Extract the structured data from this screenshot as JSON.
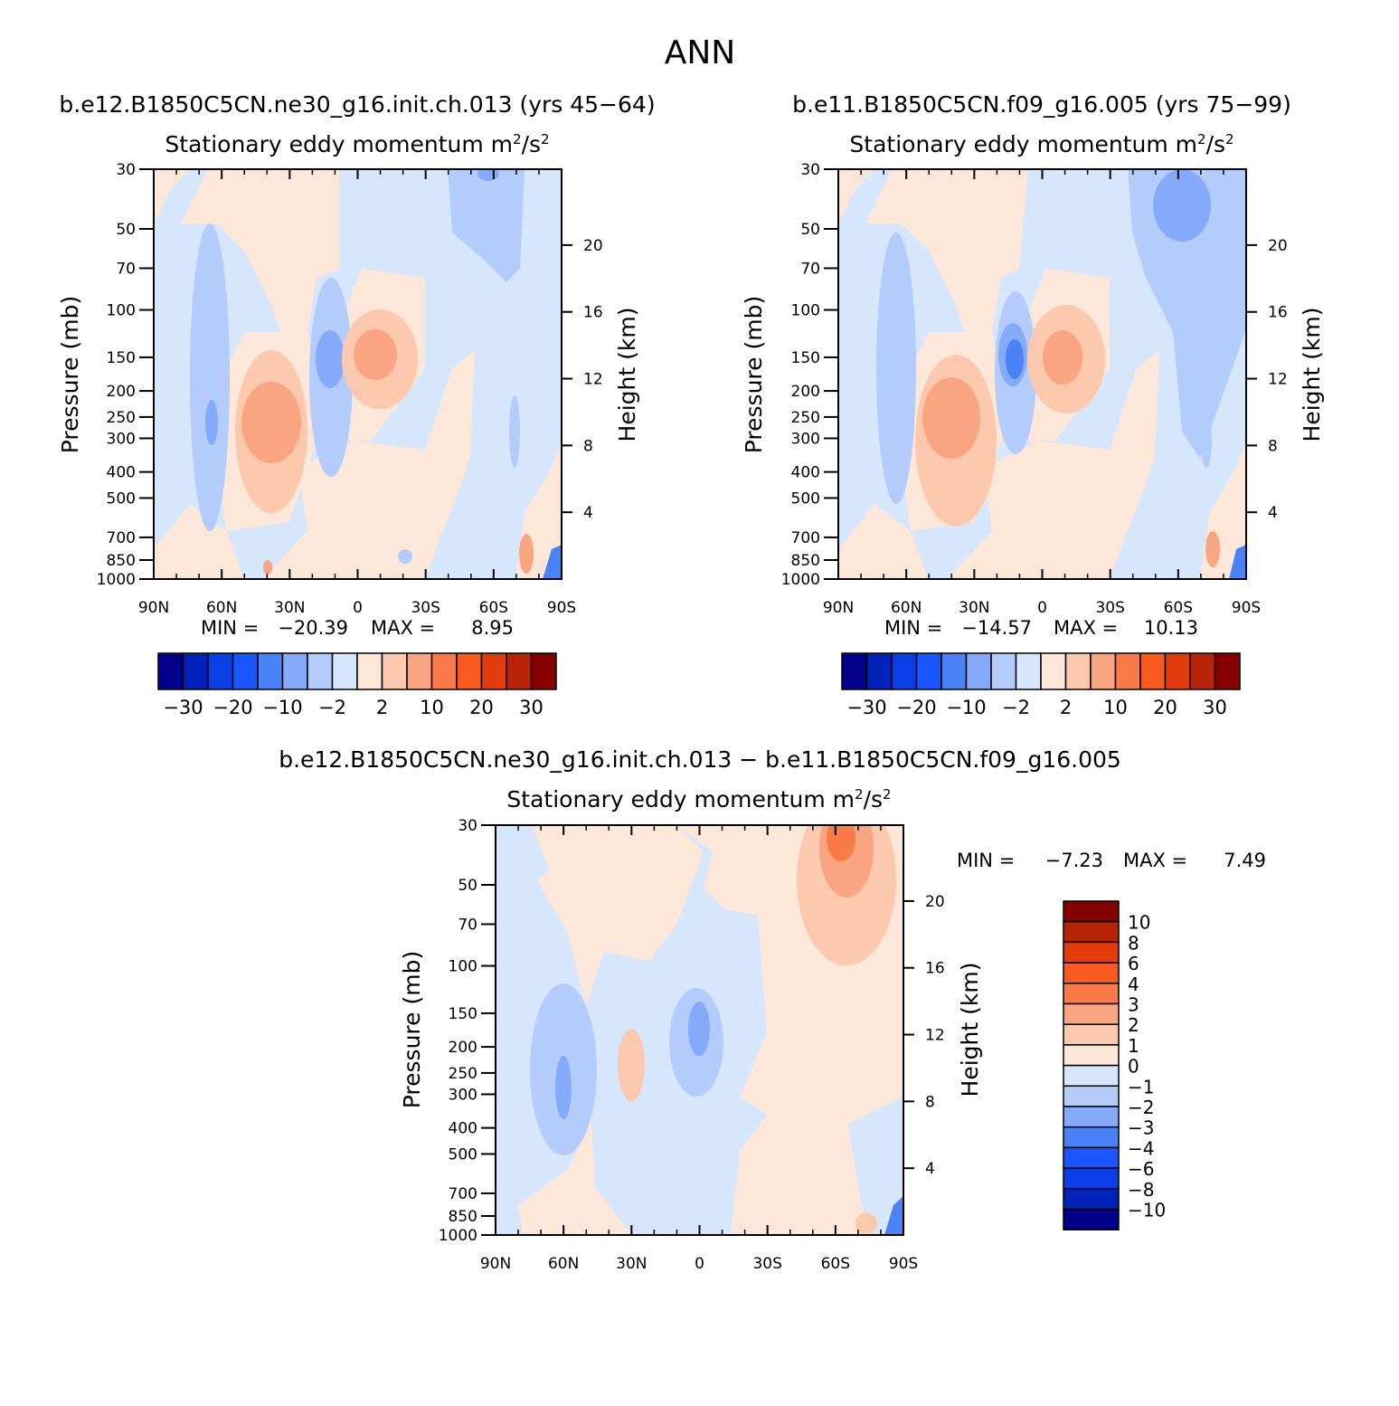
{
  "page_title": "ANN",
  "chart_data": [
    {
      "type": "contour",
      "id": "panel1",
      "case_title": "b.e12.B1850C5CN.ne30_g16.init.ch.013 (yrs 45-64)",
      "title": "Stationary eddy momentum",
      "units": "m²/s²",
      "ylabel": "Pressure (mb)",
      "y2label": "Height (km)",
      "x_ticks": [
        "90N",
        "60N",
        "30N",
        "0",
        "30S",
        "60S",
        "90S"
      ],
      "x_range": [
        90,
        -90
      ],
      "y_ticks": [
        30,
        50,
        70,
        100,
        150,
        200,
        250,
        300,
        400,
        500,
        700,
        850,
        1000
      ],
      "y_range": [
        30,
        1000
      ],
      "y2_ticks": [
        20,
        16,
        12,
        8,
        4
      ],
      "min": "-20.39",
      "max": "8.95",
      "min_label": "MIN =",
      "max_label": "MAX =",
      "contour_levels": [
        -30,
        -25,
        -20,
        -15,
        -10,
        -5,
        -2,
        0,
        2,
        5,
        10,
        15,
        20,
        25,
        30
      ],
      "colorbar_labels": [
        "-30",
        "-20",
        "-10",
        "-2",
        "2",
        "10",
        "20",
        "30"
      ]
    },
    {
      "type": "contour",
      "id": "panel2",
      "case_title": "b.e11.B1850C5CN.f09_g16.005 (yrs 75-99)",
      "title": "Stationary eddy momentum",
      "units": "m²/s²",
      "ylabel": "Pressure (mb)",
      "y2label": "Height (km)",
      "x_ticks": [
        "90N",
        "60N",
        "30N",
        "0",
        "30S",
        "60S",
        "90S"
      ],
      "x_range": [
        90,
        -90
      ],
      "y_ticks": [
        30,
        50,
        70,
        100,
        150,
        200,
        250,
        300,
        400,
        500,
        700,
        850,
        1000
      ],
      "y_range": [
        30,
        1000
      ],
      "y2_ticks": [
        20,
        16,
        12,
        8,
        4
      ],
      "min": "-14.57",
      "max": "10.13",
      "min_label": "MIN =",
      "max_label": "MAX =",
      "contour_levels": [
        -30,
        -25,
        -20,
        -15,
        -10,
        -5,
        -2,
        0,
        2,
        5,
        10,
        15,
        20,
        25,
        30
      ],
      "colorbar_labels": [
        "-30",
        "-20",
        "-10",
        "-2",
        "2",
        "10",
        "20",
        "30"
      ]
    },
    {
      "type": "contour",
      "id": "panel3",
      "case_title": "b.e12.B1850C5CN.ne30_g16.init.ch.013 - b.e11.B1850C5CN.f09_g16.005",
      "title": "Stationary eddy momentum",
      "units": "m²/s²",
      "ylabel": "Pressure (mb)",
      "y2label": "Height (km)",
      "x_ticks": [
        "90N",
        "60N",
        "30N",
        "0",
        "30S",
        "60S",
        "90S"
      ],
      "x_range": [
        90,
        -90
      ],
      "y_ticks": [
        30,
        50,
        70,
        100,
        150,
        200,
        250,
        300,
        400,
        500,
        700,
        850,
        1000
      ],
      "y_range": [
        30,
        1000
      ],
      "y2_ticks": [
        20,
        16,
        12,
        8,
        4
      ],
      "min": "-7.23",
      "max": "7.49",
      "min_label": "MIN =",
      "max_label": "MAX =",
      "contour_levels": [
        -10,
        -8,
        -6,
        -4,
        -3,
        -2,
        -1,
        0,
        1,
        2,
        3,
        4,
        6,
        8,
        10
      ],
      "colorbar_labels": [
        "10",
        "8",
        "6",
        "4",
        "3",
        "2",
        "1",
        "0",
        "-1",
        "-2",
        "-3",
        "-4",
        "-6",
        "-8",
        "-10"
      ]
    }
  ],
  "colors": {
    "palette": [
      "#00008a",
      "#0022bb",
      "#0a3ee6",
      "#1a56ff",
      "#4a82f7",
      "#85aaf9",
      "#b3ccfb",
      "#d6e6fc",
      "#fde7d8",
      "#fcc9ae",
      "#f9a582",
      "#fb7b48",
      "#fa5a1e",
      "#e33c0c",
      "#b82205",
      "#860000"
    ],
    "vertical_palette": [
      "#860000",
      "#b82205",
      "#e33c0c",
      "#fa5a1e",
      "#fb7b48",
      "#f9a582",
      "#fcc9ae",
      "#fde7d8",
      "#d6e6fc",
      "#b3ccfb",
      "#85aaf9",
      "#4a82f7",
      "#1a56ff",
      "#0a3ee6",
      "#0022bb",
      "#00008a"
    ]
  }
}
